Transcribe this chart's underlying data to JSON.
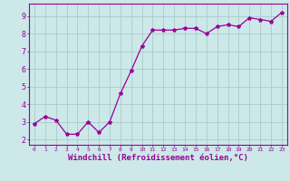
{
  "x": [
    0,
    1,
    2,
    3,
    4,
    5,
    6,
    7,
    8,
    9,
    10,
    11,
    12,
    13,
    14,
    15,
    16,
    17,
    18,
    19,
    20,
    21,
    22,
    23
  ],
  "y": [
    2.9,
    3.3,
    3.1,
    2.3,
    2.3,
    3.0,
    2.4,
    3.0,
    4.6,
    5.9,
    7.3,
    8.2,
    8.2,
    8.2,
    8.3,
    8.3,
    8.0,
    8.4,
    8.5,
    8.4,
    8.9,
    8.8,
    8.7,
    9.2
  ],
  "line_color": "#990099",
  "marker": "*",
  "marker_size": 3,
  "bg_color": "#cce8e8",
  "grid_color": "#aacccc",
  "spine_color": "#990099",
  "tick_color": "#990099",
  "label_color": "#990099",
  "xlabel": "Windchill (Refroidissement éolien,°C)",
  "xlabel_fontsize": 6.5,
  "ytick_labels": [
    "2",
    "3",
    "4",
    "5",
    "6",
    "7",
    "8",
    "9"
  ],
  "yticks": [
    2,
    3,
    4,
    5,
    6,
    7,
    8,
    9
  ],
  "xticks": [
    0,
    1,
    2,
    3,
    4,
    5,
    6,
    7,
    8,
    9,
    10,
    11,
    12,
    13,
    14,
    15,
    16,
    17,
    18,
    19,
    20,
    21,
    22,
    23
  ],
  "ylim": [
    1.7,
    9.7
  ],
  "xlim": [
    -0.5,
    23.5
  ]
}
